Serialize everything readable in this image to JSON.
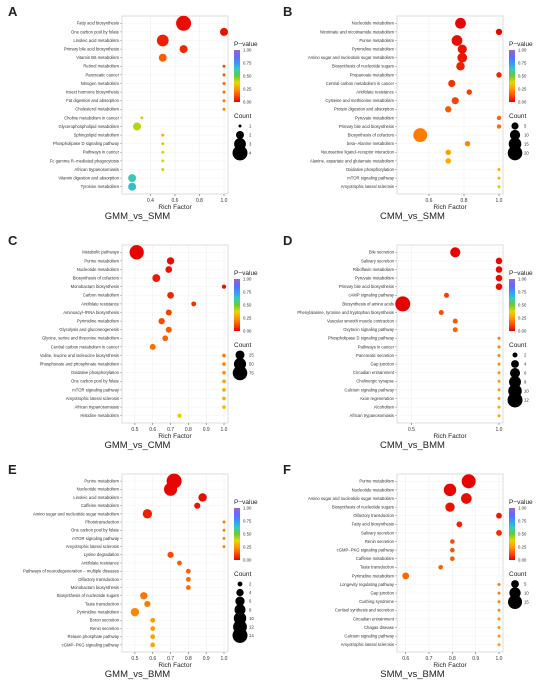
{
  "figure": {
    "background": "#ffffff"
  },
  "color_scale": {
    "stops": [
      "#e60000",
      "#ff4d00",
      "#ff9900",
      "#e6d800",
      "#66cc33",
      "#33ccbb",
      "#3399ff",
      "#6666ff",
      "#9966cc"
    ],
    "ticks": [
      "0.00",
      "0.25",
      "0.50",
      "0.75",
      "1.00"
    ]
  },
  "chart_data": [
    {
      "panel": "A",
      "type": "scatter",
      "title": "GMM_vs_SMM",
      "xlabel": "Rich Factor",
      "xlim": [
        0.2,
        1.0
      ],
      "xticks": [
        0.4,
        0.6,
        0.8,
        1.0
      ],
      "xtick_labels": [
        "0.4",
        "0.6",
        "0.8",
        "1.0"
      ],
      "legend_title_color": "P−value",
      "legend_title_size": "Count",
      "size_legend": [
        1,
        2,
        3,
        4
      ],
      "size_range": [
        1,
        4
      ],
      "terms": [
        {
          "name": "Fatty acid biosynthesis",
          "x": 0.67,
          "count": 4,
          "p": 0.02
        },
        {
          "name": "One carbon pool by folate",
          "x": 1.0,
          "count": 2,
          "p": 0.03
        },
        {
          "name": "Linoleic acid metabolism",
          "x": 0.5,
          "count": 3,
          "p": 0.05
        },
        {
          "name": "Primary bile acid biosynthesis",
          "x": 0.67,
          "count": 2,
          "p": 0.06
        },
        {
          "name": "Vitamin B6 metabolism",
          "x": 0.5,
          "count": 2,
          "p": 0.15
        },
        {
          "name": "Retinol metabolism",
          "x": 1.0,
          "count": 1,
          "p": 0.12
        },
        {
          "name": "Pancreatic cancer",
          "x": 1.0,
          "count": 1,
          "p": 0.14
        },
        {
          "name": "Nitrogen metabolism",
          "x": 1.0,
          "count": 1,
          "p": 0.16
        },
        {
          "name": "Insect hormone biosynthesis",
          "x": 1.0,
          "count": 1,
          "p": 0.18
        },
        {
          "name": "Fat digestion and absorption",
          "x": 1.0,
          "count": 1,
          "p": 0.2
        },
        {
          "name": "Cholesterol metabolism",
          "x": 1.0,
          "count": 1,
          "p": 0.22
        },
        {
          "name": "Choline metabolism in cancer",
          "x": 0.33,
          "count": 1,
          "p": 0.35
        },
        {
          "name": "Glycerophospholipid metabolism",
          "x": 0.29,
          "count": 2,
          "p": 0.42
        },
        {
          "name": "Sphingolipid metabolism",
          "x": 0.5,
          "count": 1,
          "p": 0.3
        },
        {
          "name": "Phospholipase D signaling pathway",
          "x": 0.5,
          "count": 1,
          "p": 0.33
        },
        {
          "name": "Pathways in cancer",
          "x": 0.5,
          "count": 1,
          "p": 0.36
        },
        {
          "name": "Fc gamma R−mediated phagocytosis",
          "x": 0.5,
          "count": 1,
          "p": 0.38
        },
        {
          "name": "African trypanosomiasis",
          "x": 0.5,
          "count": 1,
          "p": 0.4
        },
        {
          "name": "Vitamin digestion and absorption",
          "x": 0.25,
          "count": 2,
          "p": 0.62
        },
        {
          "name": "Tyrosine metabolism",
          "x": 0.25,
          "count": 2,
          "p": 0.66
        }
      ]
    },
    {
      "panel": "B",
      "type": "scatter",
      "title": "CMM_vs_SMM",
      "xlabel": "Rich Factor",
      "xlim": [
        0.44,
        1.0
      ],
      "xticks": [
        0.6,
        0.8,
        1.0
      ],
      "xtick_labels": [
        "0.6",
        "0.8",
        "1.0"
      ],
      "legend_title_color": "P−value",
      "legend_title_size": "Count",
      "size_legend": [
        5,
        10,
        15,
        20
      ],
      "size_range": [
        1,
        21
      ],
      "terms": [
        {
          "name": "Nucleotide metabolism",
          "x": 0.78,
          "count": 11,
          "p": 0.005
        },
        {
          "name": "Nicotinate and nicotinamide metabolism",
          "x": 1.0,
          "count": 4,
          "p": 0.01
        },
        {
          "name": "Purine metabolism",
          "x": 0.76,
          "count": 11,
          "p": 0.02
        },
        {
          "name": "Pyrimidine metabolism",
          "x": 0.79,
          "count": 8,
          "p": 0.03
        },
        {
          "name": "Amino sugar and nucleotide sugar metabolism",
          "x": 0.79,
          "count": 9,
          "p": 0.035
        },
        {
          "name": "Biosynthesis of nucleotide sugars",
          "x": 0.78,
          "count": 7,
          "p": 0.05
        },
        {
          "name": "Propanoate metabolism",
          "x": 1.0,
          "count": 3,
          "p": 0.06
        },
        {
          "name": "Central carbon metabolism in cancer",
          "x": 0.73,
          "count": 5,
          "p": 0.08
        },
        {
          "name": "Antifolate resistance",
          "x": 0.83,
          "count": 3,
          "p": 0.1
        },
        {
          "name": "Cysteine and methionine metabolism",
          "x": 0.75,
          "count": 5,
          "p": 0.11
        },
        {
          "name": "Protein digestion and absorption",
          "x": 0.71,
          "count": 4,
          "p": 0.14
        },
        {
          "name": "Pyruvate metabolism",
          "x": 1.0,
          "count": 2,
          "p": 0.16
        },
        {
          "name": "Primary bile acid biosynthesis",
          "x": 1.0,
          "count": 2,
          "p": 0.18
        },
        {
          "name": "Biosynthesis of cofactors",
          "x": 0.55,
          "count": 18,
          "p": 0.2
        },
        {
          "name": "beta−Alanine metabolism",
          "x": 0.82,
          "count": 3,
          "p": 0.22
        },
        {
          "name": "Neuroactive ligand−receptor interaction",
          "x": 0.71,
          "count": 3,
          "p": 0.26
        },
        {
          "name": "Alanine, aspartate and glutamate metabolism",
          "x": 0.71,
          "count": 3,
          "p": 0.28
        },
        {
          "name": "Oxidative phosphorylation",
          "x": 1.0,
          "count": 1,
          "p": 0.3
        },
        {
          "name": "mTOR signaling pathway",
          "x": 1.0,
          "count": 1,
          "p": 0.32
        },
        {
          "name": "Amyotrophic lateral sclerosis",
          "x": 1.0,
          "count": 1,
          "p": 0.34
        }
      ]
    },
    {
      "panel": "C",
      "type": "scatter",
      "title": "GMM_vs_CMM",
      "xlabel": "Rich Factor",
      "xlim": [
        0.45,
        1.0
      ],
      "xticks": [
        0.5,
        0.6,
        0.7,
        0.8,
        0.9,
        1.0
      ],
      "xtick_labels": [
        "0.5",
        "0.6",
        "0.7",
        "0.8",
        "0.9",
        "1.0"
      ],
      "legend_title_color": "P−value",
      "legend_title_size": "Count",
      "size_legend": [
        25,
        50,
        75
      ],
      "size_range": [
        1,
        80
      ],
      "terms": [
        {
          "name": "Metabolic pathways",
          "x": 0.51,
          "count": 72,
          "p": 0.005
        },
        {
          "name": "Purine metabolism",
          "x": 0.7,
          "count": 15,
          "p": 0.02
        },
        {
          "name": "Nucleotide metabolism",
          "x": 0.69,
          "count": 12,
          "p": 0.03
        },
        {
          "name": "Biosynthesis of cofactors",
          "x": 0.62,
          "count": 18,
          "p": 0.04
        },
        {
          "name": "Monobactam biosynthesis",
          "x": 1.0,
          "count": 3,
          "p": 0.02
        },
        {
          "name": "Carbon metabolism",
          "x": 0.7,
          "count": 12,
          "p": 0.06
        },
        {
          "name": "Antifolate resistance",
          "x": 0.83,
          "count": 5,
          "p": 0.08
        },
        {
          "name": "Aminoacyl−tRNA biosynthesis",
          "x": 0.69,
          "count": 9,
          "p": 0.1
        },
        {
          "name": "Pyrimidine metabolism",
          "x": 0.65,
          "count": 10,
          "p": 0.12
        },
        {
          "name": "Glycolysis and gluconeogenesis",
          "x": 0.69,
          "count": 9,
          "p": 0.14
        },
        {
          "name": "Glycine, serine and threonine metabolism",
          "x": 0.67,
          "count": 8,
          "p": 0.16
        },
        {
          "name": "Central carbon metabolism in cancer",
          "x": 0.6,
          "count": 9,
          "p": 0.18
        },
        {
          "name": "Valine, leucine and isoleucine biosynthesis",
          "x": 1.0,
          "count": 2,
          "p": 0.2
        },
        {
          "name": "Phosphonate and phosphinate metabolism",
          "x": 1.0,
          "count": 2,
          "p": 0.22
        },
        {
          "name": "Oxidative phosphorylation",
          "x": 1.0,
          "count": 2,
          "p": 0.24
        },
        {
          "name": "One carbon pool by folate",
          "x": 1.0,
          "count": 2,
          "p": 0.26
        },
        {
          "name": "mTOR signaling pathway",
          "x": 1.0,
          "count": 2,
          "p": 0.28
        },
        {
          "name": "Amyotrophic lateral sclerosis",
          "x": 1.0,
          "count": 2,
          "p": 0.3
        },
        {
          "name": "African trypanosomiasis",
          "x": 1.0,
          "count": 2,
          "p": 0.32
        },
        {
          "name": "Histidine metabolism",
          "x": 0.75,
          "count": 3,
          "p": 0.35
        }
      ]
    },
    {
      "panel": "D",
      "type": "scatter",
      "title": "CMM_vs_BMM",
      "xlabel": "Rich Factor",
      "xlim": [
        0.44,
        1.0
      ],
      "xticks": [
        0.5,
        1.0
      ],
      "xtick_labels": [
        "0.5",
        "1.0"
      ],
      "legend_title_color": "P−value",
      "legend_title_size": "Count",
      "size_legend": [
        2,
        4,
        6,
        8,
        10,
        12
      ],
      "size_range": [
        1,
        12
      ],
      "terms": [
        {
          "name": "Bile secretion",
          "x": 0.75,
          "count": 6,
          "p": 0.005
        },
        {
          "name": "Salivary secretion",
          "x": 1.0,
          "count": 3,
          "p": 0.01
        },
        {
          "name": "Riboflavin metabolism",
          "x": 1.0,
          "count": 3,
          "p": 0.015
        },
        {
          "name": "Pyruvate metabolism",
          "x": 1.0,
          "count": 3,
          "p": 0.02
        },
        {
          "name": "Primary bile acid biosynthesis",
          "x": 1.0,
          "count": 3,
          "p": 0.025
        },
        {
          "name": "cAMP signaling pathway",
          "x": 0.7,
          "count": 2,
          "p": 0.1
        },
        {
          "name": "Biosynthesis of amino acids",
          "x": 0.45,
          "count": 12,
          "p": 0.005
        },
        {
          "name": "Phenylalanine, tyrosine and tryptophan biosynthesis",
          "x": 0.67,
          "count": 2,
          "p": 0.12
        },
        {
          "name": "Vascular smooth muscle contraction",
          "x": 0.75,
          "count": 2,
          "p": 0.14
        },
        {
          "name": "Oxytocin signaling pathway",
          "x": 0.75,
          "count": 2,
          "p": 0.16
        },
        {
          "name": "Phospholipase D signaling pathway",
          "x": 1.0,
          "count": 1,
          "p": 0.2
        },
        {
          "name": "Pathways in cancer",
          "x": 1.0,
          "count": 1,
          "p": 0.21
        },
        {
          "name": "Pancreatic secretion",
          "x": 1.0,
          "count": 1,
          "p": 0.22
        },
        {
          "name": "Gap junction",
          "x": 1.0,
          "count": 1,
          "p": 0.23
        },
        {
          "name": "Circadian entrainment",
          "x": 1.0,
          "count": 1,
          "p": 0.24
        },
        {
          "name": "Cholinergic synapse",
          "x": 1.0,
          "count": 1,
          "p": 0.25
        },
        {
          "name": "Calcium signaling pathway",
          "x": 1.0,
          "count": 1,
          "p": 0.26
        },
        {
          "name": "Axon regeneration",
          "x": 1.0,
          "count": 1,
          "p": 0.27
        },
        {
          "name": "Alcoholism",
          "x": 1.0,
          "count": 1,
          "p": 0.28
        },
        {
          "name": "African trypanosomiasis",
          "x": 1.0,
          "count": 1,
          "p": 0.29
        }
      ]
    },
    {
      "panel": "E",
      "type": "scatter",
      "title": "GMM_vs_BMM",
      "xlabel": "Rich Factor",
      "xlim": [
        0.45,
        1.0
      ],
      "xticks": [
        0.5,
        0.6,
        0.7,
        0.8,
        0.9,
        1.0
      ],
      "xtick_labels": [
        "0.5",
        "0.6",
        "0.7",
        "0.8",
        "0.9",
        "1.0"
      ],
      "legend_title_color": "P−value",
      "legend_title_size": "Count",
      "size_legend": [
        2,
        4,
        6,
        8,
        10,
        12,
        14
      ],
      "size_range": [
        1,
        14
      ],
      "terms": [
        {
          "name": "Purine metabolism",
          "x": 0.72,
          "count": 14,
          "p": 0.005
        },
        {
          "name": "Nucleotide metabolism",
          "x": 0.7,
          "count": 11,
          "p": 0.01
        },
        {
          "name": "Linoleic acid metabolism",
          "x": 0.88,
          "count": 5,
          "p": 0.02
        },
        {
          "name": "Caffeine metabolism",
          "x": 0.85,
          "count": 3,
          "p": 0.03
        },
        {
          "name": "Amino sugar and nucleotide sugar metabolism",
          "x": 0.57,
          "count": 6,
          "p": 0.05
        },
        {
          "name": "Phototransduction",
          "x": 1.0,
          "count": 1,
          "p": 0.2
        },
        {
          "name": "One carbon pool by folate",
          "x": 1.0,
          "count": 1,
          "p": 0.21
        },
        {
          "name": "mTOR signaling pathway",
          "x": 1.0,
          "count": 1,
          "p": 0.22
        },
        {
          "name": "Amyotrophic lateral sclerosis",
          "x": 1.0,
          "count": 1,
          "p": 0.23
        },
        {
          "name": "Lysine degradation",
          "x": 0.7,
          "count": 3,
          "p": 0.12
        },
        {
          "name": "Antifolate resistance",
          "x": 0.75,
          "count": 2,
          "p": 0.15
        },
        {
          "name": "Pathways of neurodegeneration − multiple diseases",
          "x": 0.8,
          "count": 2,
          "p": 0.16
        },
        {
          "name": "Olfactory transduction",
          "x": 0.8,
          "count": 2,
          "p": 0.17
        },
        {
          "name": "Monobactam biosynthesis",
          "x": 0.8,
          "count": 2,
          "p": 0.18
        },
        {
          "name": "Biosynthesis of nucleotide sugars",
          "x": 0.55,
          "count": 4,
          "p": 0.19
        },
        {
          "name": "Taste transduction",
          "x": 0.57,
          "count": 3,
          "p": 0.2
        },
        {
          "name": "Pyrimidine metabolism",
          "x": 0.5,
          "count": 5,
          "p": 0.22
        },
        {
          "name": "Boron secretion",
          "x": 0.6,
          "count": 2,
          "p": 0.25
        },
        {
          "name": "Renin secretion",
          "x": 0.6,
          "count": 2,
          "p": 0.26
        },
        {
          "name": "Relaxin phosphate pathway",
          "x": 0.6,
          "count": 2,
          "p": 0.27
        },
        {
          "name": "cGMP−PKG signaling pathway",
          "x": 0.6,
          "count": 2,
          "p": 0.28
        }
      ]
    },
    {
      "panel": "F",
      "type": "scatter",
      "title": "SMM_vs_BMM",
      "xlabel": "Rich Factor",
      "xlim": [
        0.58,
        1.0
      ],
      "xticks": [
        0.6,
        0.7,
        0.8,
        0.9,
        1.0
      ],
      "xtick_labels": [
        "0.6",
        "0.7",
        "0.8",
        "0.9",
        "1.0"
      ],
      "legend_title_color": "P−value",
      "legend_title_size": "Count",
      "size_legend": [
        5,
        10,
        15
      ],
      "size_range": [
        1,
        17
      ],
      "terms": [
        {
          "name": "Purine metabolism",
          "x": 0.87,
          "count": 15,
          "p": 0.005
        },
        {
          "name": "Nucleotide metabolism",
          "x": 0.79,
          "count": 12,
          "p": 0.01
        },
        {
          "name": "Amino sugar and nucleotide sugar metabolism",
          "x": 0.86,
          "count": 9,
          "p": 0.02
        },
        {
          "name": "Biosynthesis of nucleotide sugars",
          "x": 0.79,
          "count": 7,
          "p": 0.03
        },
        {
          "name": "Olfactory transduction",
          "x": 1.0,
          "count": 3,
          "p": 0.04
        },
        {
          "name": "Fatty acid biosynthesis",
          "x": 0.83,
          "count": 3,
          "p": 0.06
        },
        {
          "name": "Salivary secretion",
          "x": 1.0,
          "count": 3,
          "p": 0.07
        },
        {
          "name": "Renin secretion",
          "x": 0.8,
          "count": 2,
          "p": 0.12
        },
        {
          "name": "cGMP−PKG signaling pathway",
          "x": 0.8,
          "count": 2,
          "p": 0.13
        },
        {
          "name": "Caffeine metabolism",
          "x": 0.8,
          "count": 2,
          "p": 0.14
        },
        {
          "name": "Taste transduction",
          "x": 0.75,
          "count": 2,
          "p": 0.15
        },
        {
          "name": "Pyrimidine metabolism",
          "x": 0.6,
          "count": 4,
          "p": 0.17
        },
        {
          "name": "Longevity regulating pathway",
          "x": 1.0,
          "count": 1,
          "p": 0.2
        },
        {
          "name": "Gap junction",
          "x": 1.0,
          "count": 1,
          "p": 0.21
        },
        {
          "name": "Cushing syndrome",
          "x": 1.0,
          "count": 1,
          "p": 0.22
        },
        {
          "name": "Cortisol synthesis and secretion",
          "x": 1.0,
          "count": 1,
          "p": 0.23
        },
        {
          "name": "Circadian entrainment",
          "x": 1.0,
          "count": 1,
          "p": 0.24
        },
        {
          "name": "Chagas disease",
          "x": 1.0,
          "count": 1,
          "p": 0.25
        },
        {
          "name": "Calcium signaling pathway",
          "x": 1.0,
          "count": 1,
          "p": 0.26
        },
        {
          "name": "Amyotrophic lateral sclerosis",
          "x": 1.0,
          "count": 1,
          "p": 0.27
        }
      ]
    }
  ]
}
